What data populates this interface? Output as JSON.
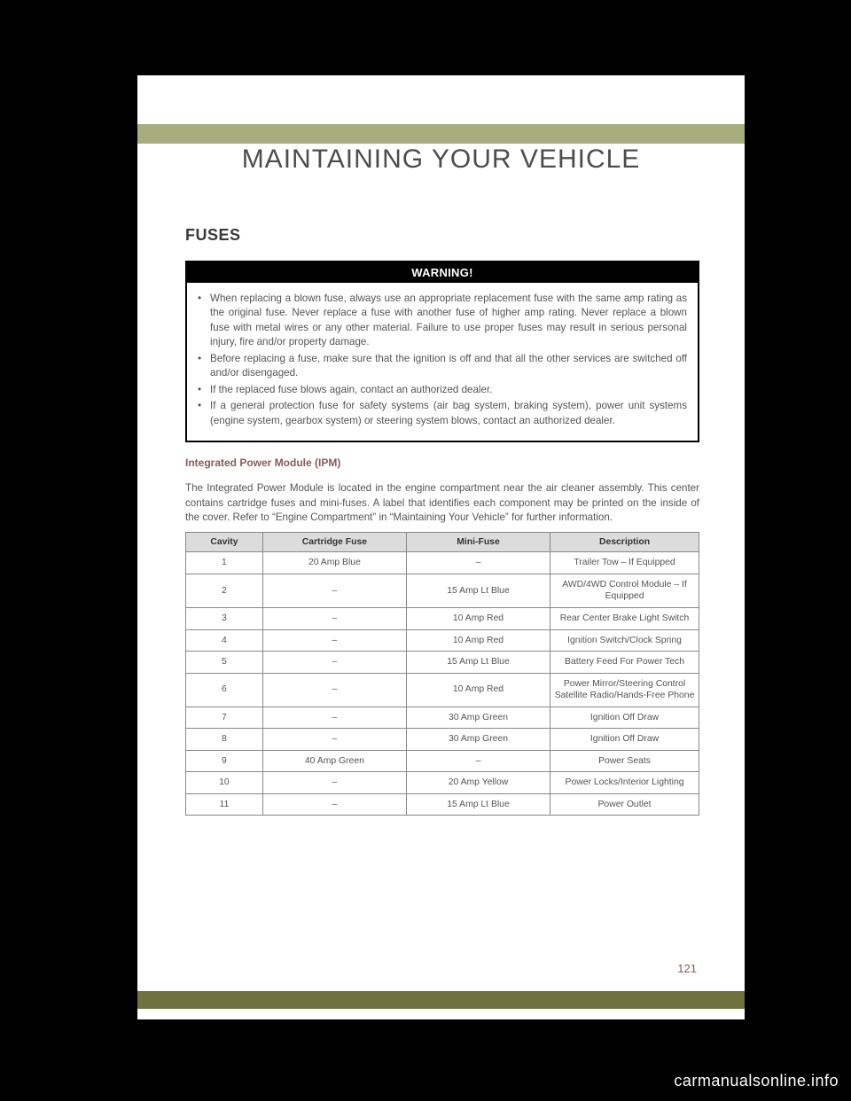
{
  "chapter_title": "MAINTAINING YOUR VEHICLE",
  "section_heading": "FUSES",
  "warning_header": "WARNING!",
  "warning_items": [
    "When replacing a blown fuse, always use an appropriate replacement fuse with the same amp rating as the original fuse. Never replace a fuse with another fuse of higher amp rating. Never replace a blown fuse with metal wires or any other material. Failure to use proper fuses may result in serious personal injury, fire and/or property damage.",
    "Before replacing a fuse, make sure that the ignition is off and that all the other services are switched off and/or disengaged.",
    "If the replaced fuse blows again, contact an authorized dealer.",
    "If a general protection fuse for safety systems (air bag system, braking system), power unit systems (engine system, gearbox system) or steering system blows, contact an authorized dealer."
  ],
  "subheading": "Integrated Power Module (IPM)",
  "body_text": "The Integrated Power Module is located in the engine compartment near the air cleaner assembly. This center contains cartridge fuses and mini-fuses. A label that identifies each component may be printed on the inside of the cover. Refer to “Engine Compartment” in “Maintaining Your Vehicle” for further information.",
  "fuse_table": {
    "columns": [
      "Cavity",
      "Cartridge Fuse",
      "Mini-Fuse",
      "Description"
    ],
    "rows": [
      [
        "1",
        "20 Amp Blue",
        "–",
        "Trailer Tow – If Equipped"
      ],
      [
        "2",
        "–",
        "15 Amp Lt Blue",
        "AWD/4WD Control Module – If Equipped"
      ],
      [
        "3",
        "–",
        "10 Amp Red",
        "Rear Center Brake Light Switch"
      ],
      [
        "4",
        "–",
        "10 Amp Red",
        "Ignition Switch/Clock Spring"
      ],
      [
        "5",
        "–",
        "15 Amp Lt Blue",
        "Battery Feed For Power Tech"
      ],
      [
        "6",
        "–",
        "10 Amp Red",
        "Power Mirror/Steering Control Satellite Radio/Hands-Free Phone"
      ],
      [
        "7",
        "–",
        "30 Amp Green",
        "Ignition Off Draw"
      ],
      [
        "8",
        "–",
        "30 Amp Green",
        "Ignition Off Draw"
      ],
      [
        "9",
        "40 Amp Green",
        "–",
        "Power Seats"
      ],
      [
        "10",
        "–",
        "20 Amp Yellow",
        "Power Locks/Interior Lighting"
      ],
      [
        "11",
        "–",
        "15 Amp Lt Blue",
        "Power Outlet"
      ]
    ]
  },
  "page_number": "121",
  "watermark": "carmanualsonline.info",
  "colors": {
    "page_bg": "#ffffff",
    "body_bg": "#000000",
    "header_bar": "#a7ad7f",
    "footer_bar": "#6f713f",
    "accent_text": "#8a5a5a",
    "text": "#555555",
    "table_header_bg": "#dcdcdc",
    "table_border": "#888888"
  }
}
